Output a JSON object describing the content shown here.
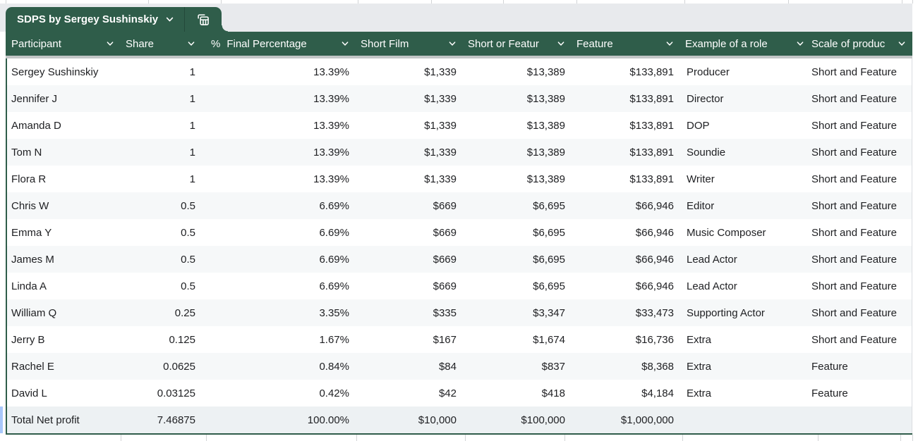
{
  "tab_bar": {
    "active_tab_label": "SDPS by Sergey Sushinskiy",
    "chevron_icon": "chevron-down",
    "table_view_icon": "table-view"
  },
  "table": {
    "columns": [
      {
        "label": "Participant"
      },
      {
        "label": "Share"
      },
      {
        "label": "Final Percentage",
        "type_icon": "%"
      },
      {
        "label": "Short Film"
      },
      {
        "label": "Short or Featur"
      },
      {
        "label": "Feature"
      },
      {
        "label": "Example of a role"
      },
      {
        "label": "Scale of produc"
      }
    ],
    "rows": [
      {
        "cells": [
          "Sergey Sushinskiy",
          "1",
          "13.39%",
          "$1,339",
          "$13,389",
          "$133,891",
          "Producer",
          "Short and Feature"
        ]
      },
      {
        "cells": [
          "Jennifer J",
          "1",
          "13.39%",
          "$1,339",
          "$13,389",
          "$133,891",
          "Director",
          "Short and Feature"
        ]
      },
      {
        "cells": [
          "Amanda D",
          "1",
          "13.39%",
          "$1,339",
          "$13,389",
          "$133,891",
          "DOP",
          "Short and Feature"
        ]
      },
      {
        "cells": [
          "Tom N",
          "1",
          "13.39%",
          "$1,339",
          "$13,389",
          "$133,891",
          "Soundie",
          "Short and Feature"
        ]
      },
      {
        "cells": [
          "Flora R",
          "1",
          "13.39%",
          "$1,339",
          "$13,389",
          "$133,891",
          "Writer",
          "Short and Feature"
        ]
      },
      {
        "cells": [
          "Chris W",
          "0.5",
          "6.69%",
          "$669",
          "$6,695",
          "$66,946",
          "Editor",
          "Short and Feature"
        ]
      },
      {
        "cells": [
          "Emma Y",
          "0.5",
          "6.69%",
          "$669",
          "$6,695",
          "$66,946",
          "Music Composer",
          "Short and Feature"
        ]
      },
      {
        "cells": [
          "James M",
          "0.5",
          "6.69%",
          "$669",
          "$6,695",
          "$66,946",
          "Lead Actor",
          "Short and Feature"
        ]
      },
      {
        "cells": [
          "Linda A",
          "0.5",
          "6.69%",
          "$669",
          "$6,695",
          "$66,946",
          "Lead Actor",
          "Short and Feature"
        ]
      },
      {
        "cells": [
          "William Q",
          "0.25",
          "3.35%",
          "$335",
          "$3,347",
          "$33,473",
          "Supporting Actor",
          "Short and Feature"
        ]
      },
      {
        "cells": [
          "Jerry B",
          "0.125",
          "1.67%",
          "$167",
          "$1,674",
          "$16,736",
          "Extra",
          "Short and Feature"
        ]
      },
      {
        "cells": [
          "Rachel E",
          "0.0625",
          "0.84%",
          "$84",
          "$837",
          "$8,368",
          "Extra",
          "Feature"
        ]
      },
      {
        "cells": [
          "David L",
          "0.03125",
          "0.42%",
          "$42",
          "$418",
          "$4,184",
          "Extra",
          "Feature"
        ]
      }
    ],
    "total_row": {
      "cells": [
        "Total Net profit",
        "7.46875",
        "100.00%",
        "$10,000",
        "$100,000",
        "$1,000,000",
        "",
        ""
      ]
    }
  },
  "colors": {
    "accent_green": "#2f5d4a",
    "tab_bar_bg": "#e8eaed",
    "header_text": "#ffffff",
    "row_text": "#202124",
    "row_stripe": "#f6f8f9",
    "total_row_bg": "#edf1f3",
    "selection_blue": "#a8c7fa",
    "gridline": "#d2d4d6",
    "body_right_border": "#dadce0",
    "header_shadow": "#c2c6c6"
  }
}
